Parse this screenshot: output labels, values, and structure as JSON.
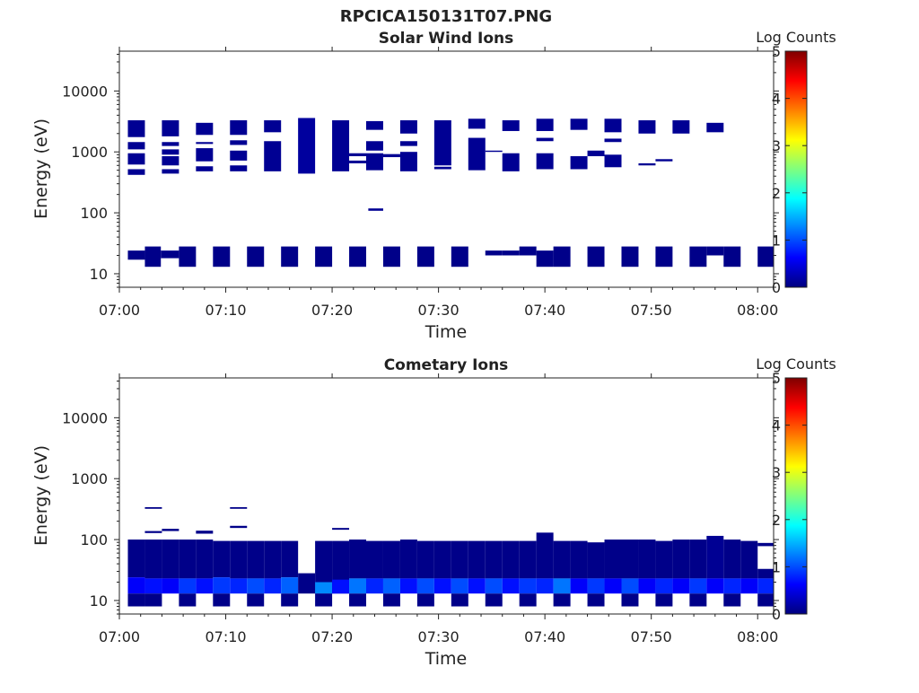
{
  "figure_title": "RPCICA150131T07.PNG",
  "colorscale": [
    "#00007f",
    "#0000ff",
    "#007fff",
    "#00ffff",
    "#7fff7f",
    "#ffff00",
    "#ff7f00",
    "#ff0000",
    "#7f0000"
  ],
  "chart_data": [
    {
      "type": "heatmap",
      "title": "Solar Wind Ions",
      "xlabel": "Time",
      "ylabel": "Energy (eV)",
      "x_range_min": [
        0,
        61.5
      ],
      "y_range_ev": [
        6,
        45000
      ],
      "yscale": "log",
      "xtick_labels": [
        "07:00",
        "07:10",
        "07:20",
        "07:30",
        "07:40",
        "07:50",
        "08:00"
      ],
      "xtick_values_min": [
        0,
        10,
        20,
        30,
        40,
        50,
        60
      ],
      "ytick_labels": [
        "10",
        "100",
        "1000",
        "10000"
      ],
      "ytick_values": [
        10,
        100,
        1000,
        10000
      ],
      "colorbar": {
        "label": "Log Counts",
        "range": [
          0,
          5
        ],
        "ticks": [
          "0",
          "1",
          "2",
          "3",
          "4",
          "5"
        ]
      },
      "cells_note": "each cell: [t_start_min, t_end_min, E_low_eV, E_high_eV, log_counts]",
      "cells": [
        [
          0.8,
          2.4,
          1750,
          3300,
          0.1
        ],
        [
          0.8,
          2.4,
          1100,
          1450,
          0.1
        ],
        [
          0.8,
          2.4,
          620,
          950,
          0.1
        ],
        [
          0.8,
          2.4,
          420,
          520,
          0.1
        ],
        [
          0.8,
          2.4,
          17,
          24,
          0.05
        ],
        [
          2.4,
          3.9,
          13,
          28,
          0.05
        ],
        [
          4.0,
          5.6,
          1800,
          3300,
          0.1
        ],
        [
          4.0,
          5.6,
          1250,
          1450,
          0.1
        ],
        [
          4.0,
          5.6,
          900,
          1100,
          0.1
        ],
        [
          4.0,
          5.6,
          600,
          850,
          0.1
        ],
        [
          4.0,
          5.6,
          440,
          520,
          0.1
        ],
        [
          3.9,
          5.6,
          18,
          24,
          0.05
        ],
        [
          5.6,
          7.2,
          13,
          28,
          0.05
        ],
        [
          7.2,
          8.8,
          1900,
          3000,
          0.1
        ],
        [
          7.2,
          8.8,
          1350,
          1450,
          0.1
        ],
        [
          7.2,
          8.8,
          700,
          1150,
          0.1
        ],
        [
          7.2,
          8.8,
          480,
          580,
          0.1
        ],
        [
          8.8,
          10.4,
          13,
          28,
          0.05
        ],
        [
          10.4,
          12.0,
          1900,
          3300,
          0.1
        ],
        [
          10.4,
          12.0,
          1300,
          1550,
          0.1
        ],
        [
          10.4,
          12.0,
          720,
          1050,
          0.1
        ],
        [
          10.4,
          12.0,
          480,
          600,
          0.1
        ],
        [
          12.0,
          13.6,
          13,
          28,
          0.05
        ],
        [
          13.6,
          15.2,
          2100,
          3300,
          0.1
        ],
        [
          13.6,
          15.2,
          480,
          1500,
          0.1
        ],
        [
          15.2,
          16.8,
          13,
          28,
          0.05
        ],
        [
          16.8,
          18.4,
          440,
          3600,
          0.15
        ],
        [
          18.4,
          20.0,
          13,
          28,
          0.05
        ],
        [
          20.0,
          21.6,
          480,
          3300,
          0.1
        ],
        [
          21.6,
          23.2,
          13,
          28,
          0.05
        ],
        [
          21.6,
          23.2,
          850,
          950,
          0.1
        ],
        [
          21.6,
          23.2,
          650,
          720,
          0.1
        ],
        [
          23.2,
          24.8,
          2300,
          3200,
          0.1
        ],
        [
          23.2,
          24.8,
          1050,
          1500,
          0.1
        ],
        [
          23.2,
          24.8,
          500,
          950,
          0.1
        ],
        [
          23.4,
          24.8,
          108,
          118,
          0.1
        ],
        [
          24.8,
          26.4,
          13,
          28,
          0.05
        ],
        [
          24.8,
          26.4,
          820,
          920,
          0.1
        ],
        [
          26.4,
          28.0,
          2000,
          3300,
          0.1
        ],
        [
          26.4,
          28.0,
          1250,
          1500,
          0.1
        ],
        [
          26.4,
          28.0,
          480,
          1000,
          0.1
        ],
        [
          28.0,
          29.6,
          13,
          28,
          0.05
        ],
        [
          29.6,
          31.2,
          600,
          3300,
          0.1
        ],
        [
          29.6,
          31.2,
          520,
          570,
          0.1
        ],
        [
          31.2,
          32.8,
          13,
          28,
          0.05
        ],
        [
          32.8,
          34.4,
          2400,
          3500,
          0.1
        ],
        [
          32.8,
          34.4,
          500,
          1700,
          0.1
        ],
        [
          34.4,
          36.0,
          20,
          24,
          0.05
        ],
        [
          34.4,
          36.0,
          1000,
          1050,
          0.1
        ],
        [
          36.0,
          37.6,
          2200,
          3300,
          0.1
        ],
        [
          36.0,
          37.6,
          480,
          950,
          0.1
        ],
        [
          36.0,
          37.6,
          20,
          24,
          0.05
        ],
        [
          37.6,
          39.2,
          20,
          28,
          0.05
        ],
        [
          39.2,
          40.8,
          2200,
          3500,
          0.1
        ],
        [
          39.2,
          40.8,
          1500,
          1700,
          0.1
        ],
        [
          39.2,
          40.8,
          520,
          950,
          0.1
        ],
        [
          39.2,
          40.8,
          13,
          24,
          0.05
        ],
        [
          40.8,
          42.4,
          13,
          28,
          0.05
        ],
        [
          42.4,
          44.0,
          2300,
          3500,
          0.1
        ],
        [
          42.4,
          44.0,
          520,
          850,
          0.1
        ],
        [
          44.0,
          45.6,
          13,
          28,
          0.05
        ],
        [
          44.0,
          45.6,
          850,
          1050,
          0.1
        ],
        [
          45.6,
          47.2,
          2100,
          3500,
          0.1
        ],
        [
          45.6,
          47.2,
          1450,
          1650,
          0.1
        ],
        [
          45.6,
          47.2,
          560,
          900,
          0.1
        ],
        [
          47.2,
          48.8,
          13,
          28,
          0.05
        ],
        [
          48.8,
          50.4,
          2000,
          3300,
          0.1
        ],
        [
          48.8,
          50.4,
          600,
          650,
          0.1
        ],
        [
          50.4,
          52.0,
          13,
          28,
          0.05
        ],
        [
          50.4,
          52.0,
          700,
          760,
          0.1
        ],
        [
          52.0,
          53.6,
          2000,
          3300,
          0.1
        ],
        [
          53.6,
          55.2,
          13,
          28,
          0.05
        ],
        [
          55.2,
          56.8,
          2100,
          3000,
          0.1
        ],
        [
          55.2,
          56.8,
          20,
          28,
          0.05
        ],
        [
          56.8,
          58.4,
          13,
          28,
          0.05
        ],
        [
          60.0,
          61.5,
          13,
          28,
          0.05
        ]
      ]
    },
    {
      "type": "heatmap",
      "title": "Cometary Ions",
      "xlabel": "Time",
      "ylabel": "Energy (eV)",
      "x_range_min": [
        0,
        61.5
      ],
      "y_range_ev": [
        6,
        45000
      ],
      "yscale": "log",
      "xtick_labels": [
        "07:00",
        "07:10",
        "07:20",
        "07:30",
        "07:40",
        "07:50",
        "08:00"
      ],
      "xtick_values_min": [
        0,
        10,
        20,
        30,
        40,
        50,
        60
      ],
      "ytick_labels": [
        "10",
        "100",
        "1000",
        "10000"
      ],
      "ytick_values": [
        10,
        100,
        1000,
        10000
      ],
      "colorbar": {
        "label": "Log Counts",
        "range": [
          0,
          5
        ],
        "ticks": [
          "0",
          "1",
          "2",
          "3",
          "4",
          "5"
        ]
      },
      "cells_note": "each cell: [t_start_min, t_end_min, E_low_eV, E_high_eV, log_counts]",
      "cells": [
        [
          0.8,
          2.4,
          24,
          100,
          0.05
        ],
        [
          0.8,
          2.4,
          13,
          24,
          0.6
        ],
        [
          0.8,
          2.4,
          8,
          13,
          0.05
        ],
        [
          2.4,
          4.0,
          23,
          100,
          0.05
        ],
        [
          2.4,
          4.0,
          13,
          23,
          0.7
        ],
        [
          2.4,
          4.0,
          8,
          13,
          0.05
        ],
        [
          2.4,
          4.0,
          128,
          138,
          0.05
        ],
        [
          2.4,
          4.0,
          320,
          340,
          0.05
        ],
        [
          4.0,
          5.6,
          23,
          100,
          0.05
        ],
        [
          4.0,
          5.6,
          13,
          23,
          0.6
        ],
        [
          4.0,
          5.6,
          138,
          150,
          0.05
        ],
        [
          5.6,
          7.2,
          23,
          100,
          0.05
        ],
        [
          5.6,
          7.2,
          13,
          23,
          0.9
        ],
        [
          5.6,
          7.2,
          8,
          13,
          0.05
        ],
        [
          7.2,
          8.8,
          23,
          100,
          0.05
        ],
        [
          7.2,
          8.8,
          13,
          23,
          0.7
        ],
        [
          7.2,
          8.8,
          125,
          140,
          0.05
        ],
        [
          8.8,
          10.4,
          24,
          95,
          0.05
        ],
        [
          8.8,
          10.4,
          13,
          24,
          0.9
        ],
        [
          8.8,
          10.4,
          8,
          13,
          0.05
        ],
        [
          10.4,
          12.0,
          23,
          95,
          0.05
        ],
        [
          10.4,
          12.0,
          13,
          23,
          0.8
        ],
        [
          10.4,
          12.0,
          320,
          340,
          0.05
        ],
        [
          10.4,
          12.0,
          155,
          168,
          0.05
        ],
        [
          12.0,
          13.6,
          23,
          95,
          0.05
        ],
        [
          12.0,
          13.6,
          13,
          23,
          1.0
        ],
        [
          12.0,
          13.6,
          8,
          13,
          0.05
        ],
        [
          13.6,
          15.2,
          23,
          95,
          0.05
        ],
        [
          13.6,
          15.2,
          13,
          23,
          0.8
        ],
        [
          15.2,
          16.8,
          24,
          95,
          0.05
        ],
        [
          15.2,
          16.8,
          13,
          24,
          1.1
        ],
        [
          15.2,
          16.8,
          8,
          13,
          0.05
        ],
        [
          16.8,
          18.4,
          13,
          28,
          0.05
        ],
        [
          18.4,
          20.0,
          13,
          95,
          0.05
        ],
        [
          18.4,
          20.0,
          13,
          20,
          1.3
        ],
        [
          18.4,
          20.0,
          8,
          13,
          0.05
        ],
        [
          20.0,
          21.6,
          13,
          95,
          0.05
        ],
        [
          20.0,
          21.6,
          13,
          22,
          0.7
        ],
        [
          20.0,
          21.6,
          145,
          155,
          0.05
        ],
        [
          21.6,
          23.2,
          23,
          100,
          0.05
        ],
        [
          21.6,
          23.2,
          13,
          23,
          1.2
        ],
        [
          21.6,
          23.2,
          8,
          13,
          0.05
        ],
        [
          23.2,
          24.8,
          23,
          95,
          0.05
        ],
        [
          23.2,
          24.8,
          13,
          23,
          0.8
        ],
        [
          24.8,
          26.4,
          23,
          95,
          0.05
        ],
        [
          24.8,
          26.4,
          13,
          23,
          1.1
        ],
        [
          24.8,
          26.4,
          8,
          13,
          0.05
        ],
        [
          26.4,
          28.0,
          23,
          100,
          0.05
        ],
        [
          26.4,
          28.0,
          13,
          23,
          0.7
        ],
        [
          28.0,
          29.6,
          23,
          95,
          0.05
        ],
        [
          28.0,
          29.6,
          13,
          23,
          1.0
        ],
        [
          28.0,
          29.6,
          8,
          13,
          0.05
        ],
        [
          29.6,
          31.2,
          23,
          95,
          0.05
        ],
        [
          29.6,
          31.2,
          13,
          23,
          0.7
        ],
        [
          31.2,
          32.8,
          23,
          95,
          0.05
        ],
        [
          31.2,
          32.8,
          13,
          23,
          1.0
        ],
        [
          31.2,
          32.8,
          8,
          13,
          0.05
        ],
        [
          32.8,
          34.4,
          23,
          95,
          0.05
        ],
        [
          32.8,
          34.4,
          13,
          23,
          0.7
        ],
        [
          34.4,
          36.0,
          23,
          95,
          0.05
        ],
        [
          34.4,
          36.0,
          13,
          23,
          1.0
        ],
        [
          34.4,
          36.0,
          8,
          13,
          0.05
        ],
        [
          36.0,
          37.6,
          23,
          95,
          0.05
        ],
        [
          36.0,
          37.6,
          13,
          23,
          0.7
        ],
        [
          37.6,
          39.2,
          23,
          95,
          0.05
        ],
        [
          37.6,
          39.2,
          13,
          23,
          0.9
        ],
        [
          37.6,
          39.2,
          8,
          13,
          0.05
        ],
        [
          39.2,
          40.8,
          23,
          130,
          0.05
        ],
        [
          39.2,
          40.8,
          13,
          23,
          0.8
        ],
        [
          40.8,
          42.4,
          23,
          95,
          0.05
        ],
        [
          40.8,
          42.4,
          13,
          23,
          1.2
        ],
        [
          40.8,
          42.4,
          8,
          13,
          0.05
        ],
        [
          42.4,
          44.0,
          23,
          95,
          0.05
        ],
        [
          42.4,
          44.0,
          13,
          23,
          0.6
        ],
        [
          44.0,
          45.6,
          23,
          90,
          0.05
        ],
        [
          44.0,
          45.6,
          13,
          23,
          0.9
        ],
        [
          44.0,
          45.6,
          8,
          13,
          0.05
        ],
        [
          45.6,
          47.2,
          23,
          100,
          0.05
        ],
        [
          45.6,
          47.2,
          13,
          23,
          0.6
        ],
        [
          47.2,
          48.8,
          23,
          100,
          0.05
        ],
        [
          47.2,
          48.8,
          13,
          23,
          1.0
        ],
        [
          47.2,
          48.8,
          8,
          13,
          0.05
        ],
        [
          48.8,
          50.4,
          23,
          100,
          0.05
        ],
        [
          48.8,
          50.4,
          13,
          23,
          0.6
        ],
        [
          50.4,
          52.0,
          23,
          95,
          0.05
        ],
        [
          50.4,
          52.0,
          13,
          23,
          0.8
        ],
        [
          50.4,
          52.0,
          8,
          13,
          0.05
        ],
        [
          52.0,
          53.6,
          23,
          100,
          0.05
        ],
        [
          52.0,
          53.6,
          13,
          23,
          0.6
        ],
        [
          53.6,
          55.2,
          23,
          100,
          0.05
        ],
        [
          53.6,
          55.2,
          13,
          23,
          0.9
        ],
        [
          53.6,
          55.2,
          8,
          13,
          0.05
        ],
        [
          55.2,
          56.8,
          23,
          115,
          0.1
        ],
        [
          55.2,
          56.8,
          13,
          23,
          0.6
        ],
        [
          56.8,
          58.4,
          23,
          100,
          0.05
        ],
        [
          56.8,
          58.4,
          13,
          23,
          0.8
        ],
        [
          56.8,
          58.4,
          8,
          13,
          0.05
        ],
        [
          58.4,
          60.0,
          23,
          95,
          0.05
        ],
        [
          58.4,
          60.0,
          13,
          23,
          0.6
        ],
        [
          60.0,
          61.5,
          23,
          33,
          0.05
        ],
        [
          60.0,
          61.5,
          13,
          23,
          0.8
        ],
        [
          60.0,
          61.5,
          8,
          13,
          0.05
        ],
        [
          60.0,
          61.5,
          78,
          88,
          0.05
        ]
      ]
    }
  ]
}
